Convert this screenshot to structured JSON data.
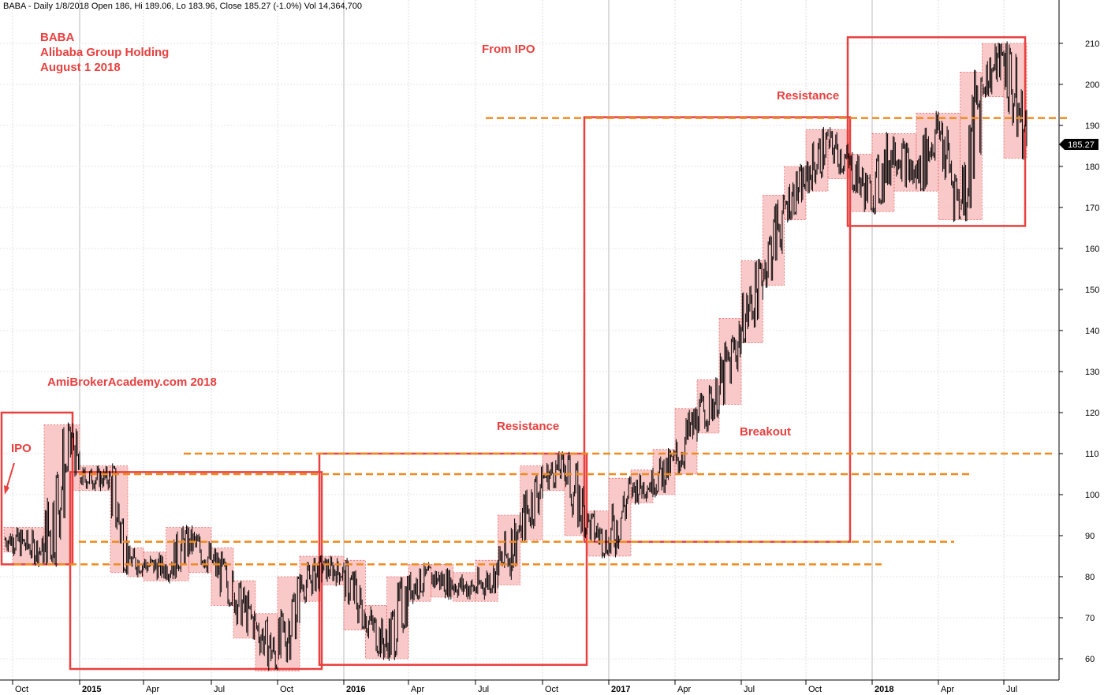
{
  "header": "BABA - Daily 1/8/2018 Open 186, Hi 189.06, Lo 183.96, Close 185.27 (-1.0%) Vol 14,364,700",
  "annotations": {
    "ticker": "BABA",
    "company": "Alibaba Group Holding",
    "date": "August 1 2018",
    "from_ipo": "From IPO",
    "watermark": "AmiBrokerAcademy.com  2018",
    "ipo": "IPO",
    "resistance_top": "Resistance",
    "resistance_mid": "Resistance",
    "breakout": "Breakout"
  },
  "last_price_label": "185.27",
  "colors": {
    "box": "#e8403f",
    "box_fill": "#f8c0c0",
    "level_line": "#f08a1e",
    "candle": "#000000",
    "label_bg": "#000000"
  },
  "chart_data": {
    "type": "line",
    "title": "BABA - Daily 1/8/2018 Open 186, Hi 189.06, Lo 183.96, Close 185.27 (-1.0%) Vol 14,364,700",
    "x_ticks": [
      "Oct",
      "2015",
      "Apr",
      "Jul",
      "Oct",
      "2016",
      "Apr",
      "Jul",
      "Oct",
      "2017",
      "Apr",
      "Jul",
      "Oct",
      "2018",
      "Apr",
      "Jul"
    ],
    "y_ticks": [
      60,
      70,
      80,
      90,
      100,
      110,
      120,
      130,
      140,
      150,
      160,
      170,
      180,
      190,
      200,
      210
    ],
    "ylim": [
      57,
      215
    ],
    "grid": true,
    "series": [
      {
        "x": [
          "2014-09",
          "2014-10",
          "2014-11",
          "2014-12",
          "2015-01",
          "2015-02",
          "2015-03",
          "2015-04",
          "2015-05",
          "2015-06",
          "2015-07",
          "2015-08",
          "2015-09",
          "2015-10",
          "2015-11",
          "2015-12",
          "2016-01",
          "2016-02",
          "2016-03",
          "2016-04",
          "2016-05",
          "2016-06",
          "2016-07",
          "2016-08",
          "2016-09",
          "2016-10",
          "2016-11",
          "2016-12",
          "2017-01",
          "2017-02",
          "2017-03",
          "2017-04",
          "2017-05",
          "2017-06",
          "2017-07",
          "2017-08",
          "2017-09",
          "2017-10",
          "2017-11",
          "2017-12",
          "2018-01",
          "2018-02",
          "2018-03",
          "2018-04",
          "2018-05",
          "2018-06",
          "2018-07"
        ],
        "values": [
          89,
          86,
          114,
          104,
          104,
          84,
          83,
          82,
          89,
          84,
          76,
          68,
          60,
          77,
          82,
          81,
          70,
          63,
          77,
          80,
          78,
          77,
          81,
          92,
          104,
          107,
          93,
          88,
          101,
          103,
          108,
          118,
          125,
          140,
          154,
          170,
          177,
          186,
          180,
          172,
          185,
          177,
          190,
          170,
          200,
          207,
          185
        ]
      }
    ],
    "levels": [
      {
        "label": "",
        "value": 191.8
      },
      {
        "label": "",
        "value": 110
      },
      {
        "label": "",
        "value": 105
      },
      {
        "label": "",
        "value": 88.5
      },
      {
        "label": "",
        "value": 83
      }
    ],
    "boxes": [
      {
        "x": [
          "2014-09",
          "2014-12"
        ],
        "y": [
          83,
          120
        ]
      },
      {
        "x": [
          "2014-12",
          "2015-12"
        ],
        "y": [
          57.5,
          105.5
        ]
      },
      {
        "x": [
          "2015-12",
          "2016-12"
        ],
        "y": [
          58.5,
          110
        ]
      },
      {
        "x": [
          "2016-12",
          "2017-12"
        ],
        "y": [
          88.5,
          192
        ]
      },
      {
        "x": [
          "2017-12",
          "2018-07"
        ],
        "y": [
          165.5,
          211.5
        ]
      }
    ]
  }
}
